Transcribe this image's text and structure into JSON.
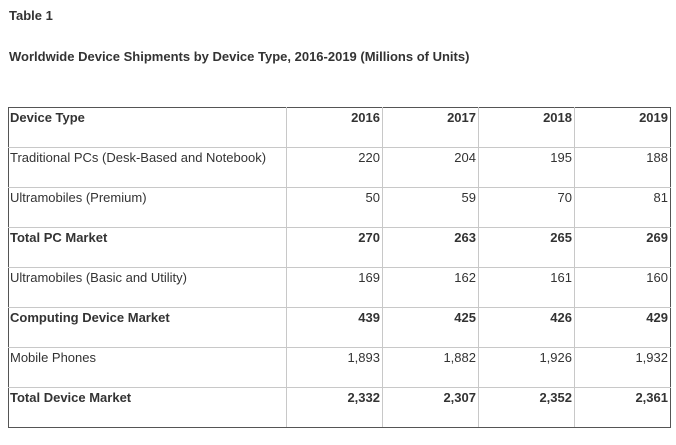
{
  "caption": {
    "label": "Table 1",
    "title": "Worldwide Device Shipments by Device Type, 2016-2019 (Millions of Units)"
  },
  "table": {
    "header": {
      "label": "Device Type",
      "years": [
        "2016",
        "2017",
        "2018",
        "2019"
      ]
    },
    "rows": [
      {
        "label": "Traditional PCs (Desk-Based and Notebook)",
        "values": [
          "220",
          "204",
          "195",
          "188"
        ],
        "bold": false
      },
      {
        "label": "Ultramobiles (Premium)",
        "values": [
          "50",
          "59",
          "70",
          "81"
        ],
        "bold": false
      },
      {
        "label": "Total PC Market",
        "values": [
          "270",
          "263",
          "265",
          "269"
        ],
        "bold": true
      },
      {
        "label": "Ultramobiles (Basic and Utility)",
        "values": [
          "169",
          "162",
          "161",
          "160"
        ],
        "bold": false
      },
      {
        "label": "Computing Device Market",
        "values": [
          "439",
          "425",
          "426",
          "429"
        ],
        "bold": true
      },
      {
        "label": "Mobile Phones",
        "values": [
          "1,893",
          "1,882",
          "1,926",
          "1,932"
        ],
        "bold": false
      },
      {
        "label": "Total Device Market",
        "values": [
          "2,332",
          "2,307",
          "2,352",
          "2,361"
        ],
        "bold": true
      }
    ]
  }
}
